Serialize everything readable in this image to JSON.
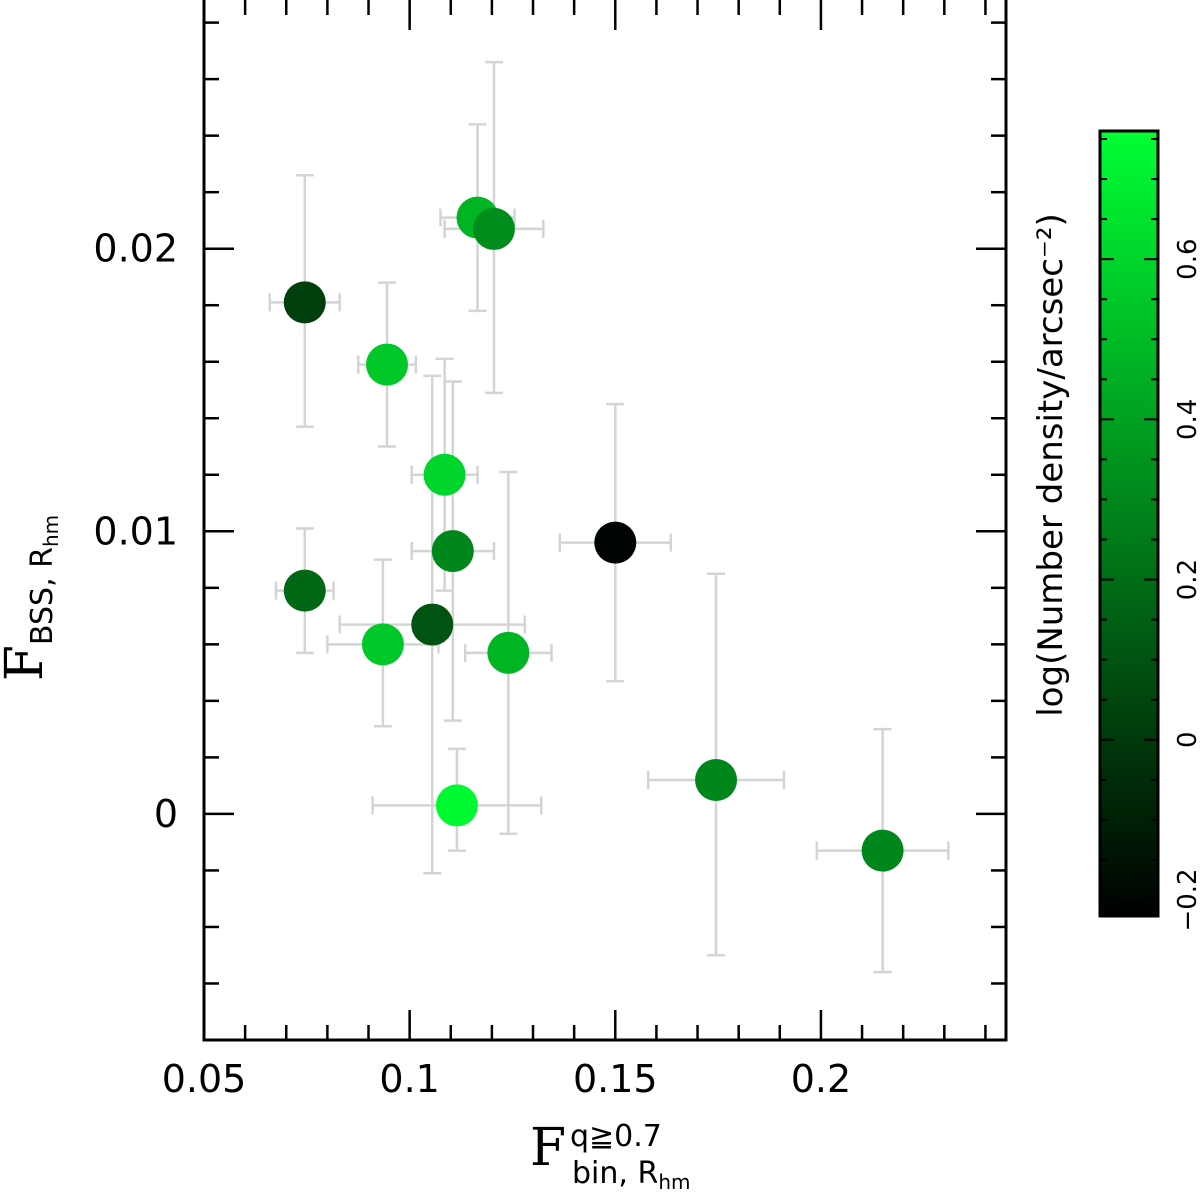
{
  "chart_data": {
    "type": "scatter",
    "title": "",
    "xlabel": {
      "main": "F",
      "superscript": "q≧0.7",
      "subscript": "bin, R",
      "subscript_sub": "hm"
    },
    "ylabel": {
      "main": "F",
      "subscript": "BSS, R",
      "subscript_sub": "hm"
    },
    "xlim": [
      0.05,
      0.245
    ],
    "ylim": [
      -0.008,
      0.0288
    ],
    "x_ticks": [
      {
        "value": 0.05,
        "label": "0.05"
      },
      {
        "value": 0.1,
        "label": "0.1"
      },
      {
        "value": 0.15,
        "label": "0.15"
      },
      {
        "value": 0.2,
        "label": "0.2"
      }
    ],
    "y_ticks": [
      {
        "value": 0.0,
        "label": "0"
      },
      {
        "value": 0.01,
        "label": "0.01"
      },
      {
        "value": 0.02,
        "label": "0.02"
      }
    ],
    "grid": false,
    "colorbar": {
      "label": "log(Number density/arcsec⁻²)",
      "range": [
        -0.22,
        0.76
      ],
      "ticks": [
        {
          "value": -0.2,
          "label": "−0.2"
        },
        {
          "value": 0.0,
          "label": "0"
        },
        {
          "value": 0.2,
          "label": "0.2"
        },
        {
          "value": 0.4,
          "label": "0.4"
        },
        {
          "value": 0.6,
          "label": "0.6"
        }
      ],
      "color_low": "#000000",
      "color_high": "#00ff33"
    },
    "error_bar_color": "#d4d4d4",
    "points": [
      {
        "x": 0.0745,
        "y": 0.0181,
        "xerr": 0.0085,
        "yerr_low": 0.0044,
        "yerr_high": 0.0045,
        "c": 0.02
      },
      {
        "x": 0.0945,
        "y": 0.0159,
        "xerr": 0.007,
        "yerr_low": 0.0029,
        "yerr_high": 0.0029,
        "c": 0.55
      },
      {
        "x": 0.1165,
        "y": 0.0211,
        "xerr": 0.009,
        "yerr_low": 0.0033,
        "yerr_high": 0.0033,
        "c": 0.47
      },
      {
        "x": 0.1205,
        "y": 0.0207,
        "xerr": 0.012,
        "yerr_low": 0.0058,
        "yerr_high": 0.0059,
        "c": 0.32
      },
      {
        "x": 0.1085,
        "y": 0.012,
        "xerr": 0.008,
        "yerr_low": 0.0041,
        "yerr_high": 0.0041,
        "c": 0.6
      },
      {
        "x": 0.1105,
        "y": 0.0093,
        "xerr": 0.01,
        "yerr_low": 0.006,
        "yerr_high": 0.006,
        "c": 0.3
      },
      {
        "x": 0.0745,
        "y": 0.0079,
        "xerr": 0.007,
        "yerr_low": 0.0022,
        "yerr_high": 0.0022,
        "c": 0.18
      },
      {
        "x": 0.1055,
        "y": 0.0067,
        "xerr": 0.0225,
        "yerr_low": 0.0088,
        "yerr_high": 0.0088,
        "c": 0.1
      },
      {
        "x": 0.0935,
        "y": 0.006,
        "xerr": 0.0135,
        "yerr_low": 0.0029,
        "yerr_high": 0.003,
        "c": 0.55
      },
      {
        "x": 0.124,
        "y": 0.0057,
        "xerr": 0.0105,
        "yerr_low": 0.0064,
        "yerr_high": 0.0064,
        "c": 0.47
      },
      {
        "x": 0.15,
        "y": 0.0096,
        "xerr": 0.0135,
        "yerr_low": 0.0049,
        "yerr_high": 0.0049,
        "c": -0.2
      },
      {
        "x": 0.1115,
        "y": 0.0003,
        "xerr": 0.0205,
        "yerr_low": 0.0016,
        "yerr_high": 0.002,
        "c": 0.74
      },
      {
        "x": 0.1745,
        "y": 0.0012,
        "xerr": 0.0165,
        "yerr_low": 0.0062,
        "yerr_high": 0.0073,
        "c": 0.3
      },
      {
        "x": 0.215,
        "y": -0.0013,
        "xerr": 0.016,
        "yerr_low": 0.0043,
        "yerr_high": 0.0043,
        "c": 0.3
      }
    ]
  }
}
